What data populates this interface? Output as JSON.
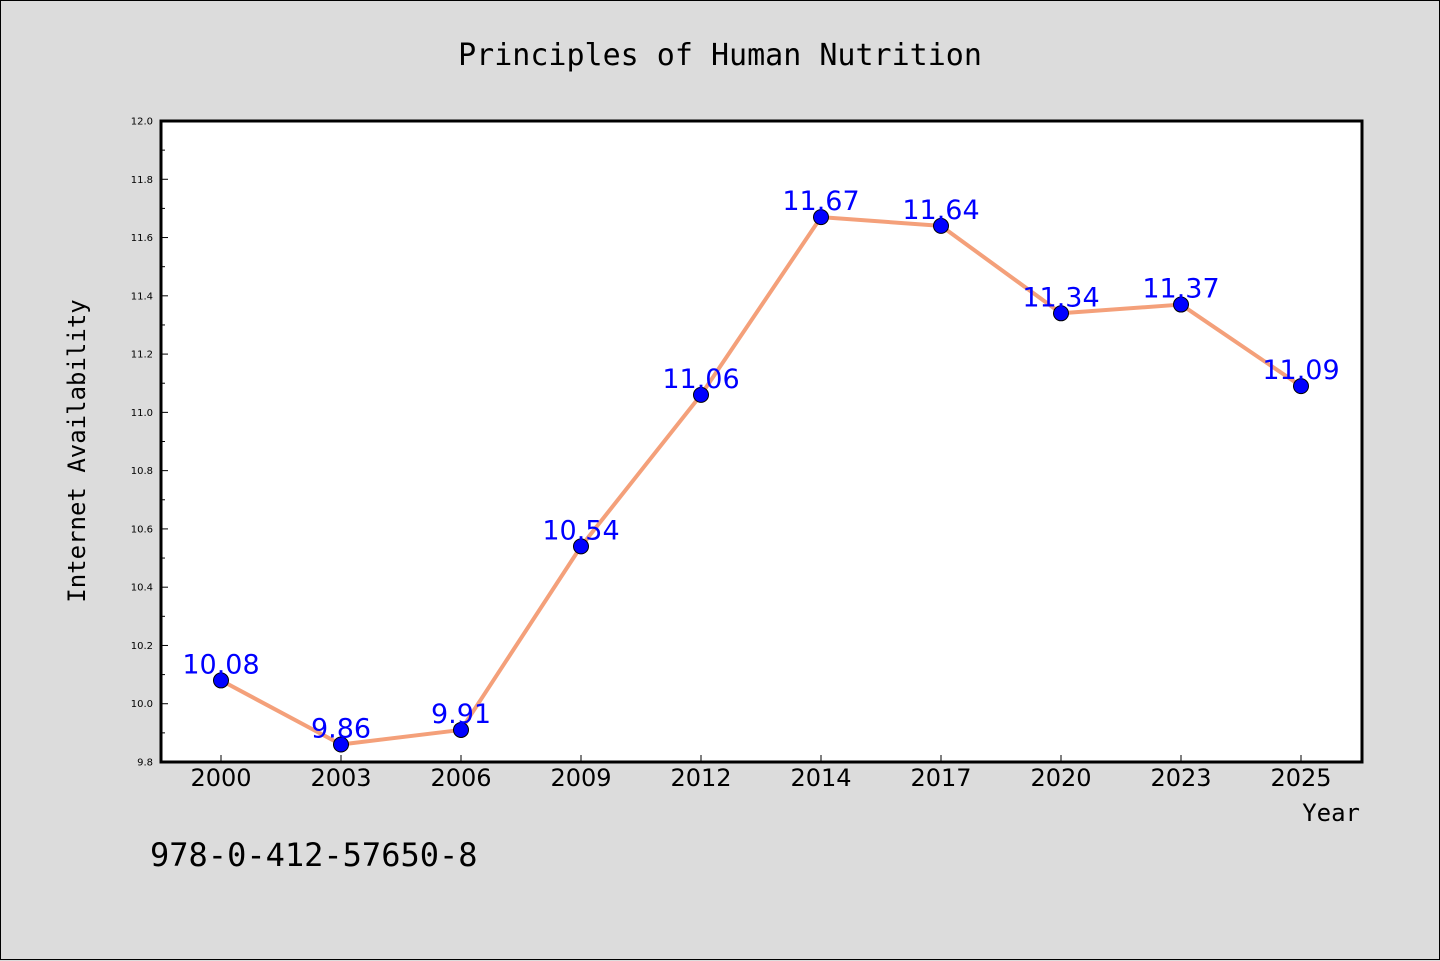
{
  "chart_data": {
    "type": "line",
    "title": "Principles of Human Nutrition",
    "xlabel": "Year",
    "ylabel": "Internet Availability",
    "categories": [
      "2000",
      "2003",
      "2006",
      "2009",
      "2012",
      "2014",
      "2017",
      "2020",
      "2023",
      "2025"
    ],
    "series": [
      {
        "values": [
          10.08,
          9.86,
          9.91,
          10.54,
          11.06,
          11.67,
          11.64,
          11.34,
          11.37,
          11.09
        ],
        "data_labels": [
          "10.08",
          "9.86",
          "9.91",
          "10.54",
          "11.06",
          "11.67",
          "11.64",
          "11.34",
          "11.37",
          "11.09"
        ],
        "line_color": "#f4a07a",
        "marker_color": "#0000ff",
        "label_color": "#0000ff"
      }
    ],
    "ylim": [
      9.8,
      12.0
    ],
    "yticks": [
      "9.8",
      "10.0",
      "10.2",
      "10.4",
      "10.6",
      "10.8",
      "11.0",
      "11.2",
      "11.4",
      "11.6",
      "11.8",
      "12.0"
    ],
    "grid": false,
    "legend": false
  },
  "footer": {
    "isbn": "978-0-412-57650-8"
  },
  "colors": {
    "background": "#dcdcdc",
    "plot_background": "#ffffff"
  }
}
